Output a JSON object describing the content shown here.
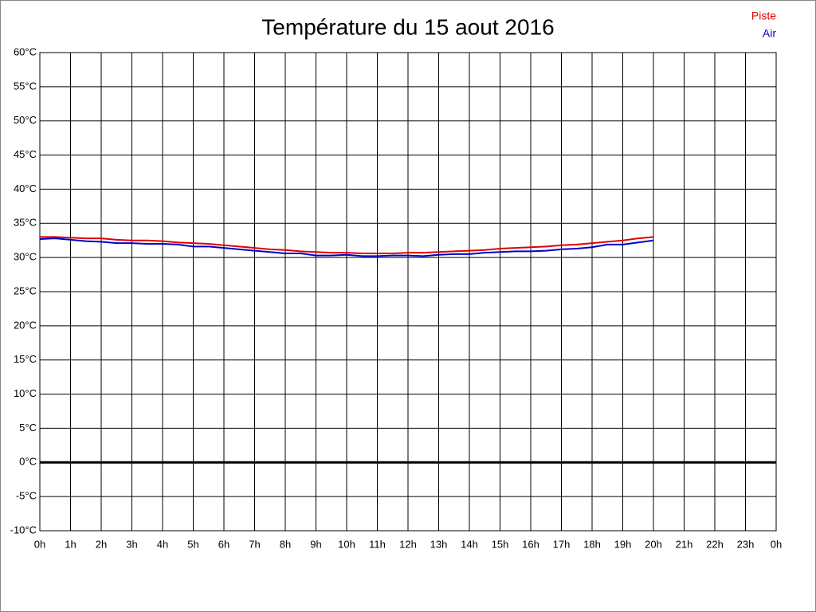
{
  "chart_data": {
    "type": "line",
    "title": "Température du 15 aout 2016",
    "x": [
      0,
      0.5,
      1,
      1.5,
      2,
      2.5,
      3,
      3.5,
      4,
      4.5,
      5,
      5.5,
      6,
      6.5,
      7,
      7.5,
      8,
      8.5,
      9,
      9.5,
      10,
      10.5,
      11,
      11.5,
      12,
      12.5,
      13,
      13.5,
      14,
      14.5,
      15,
      15.5,
      16,
      16.5,
      17,
      17.5,
      18,
      18.5,
      19,
      19.5,
      20
    ],
    "series": [
      {
        "name": "Piste",
        "color": "#e00000",
        "values": [
          33.0,
          33.0,
          32.9,
          32.8,
          32.8,
          32.6,
          32.5,
          32.5,
          32.4,
          32.2,
          32.1,
          32.0,
          31.8,
          31.6,
          31.4,
          31.2,
          31.1,
          30.9,
          30.8,
          30.7,
          30.7,
          30.6,
          30.6,
          30.6,
          30.7,
          30.7,
          30.8,
          30.9,
          31.0,
          31.1,
          31.3,
          31.4,
          31.5,
          31.6,
          31.8,
          31.9,
          32.1,
          32.3,
          32.5,
          32.8,
          33.0
        ]
      },
      {
        "name": "Air",
        "color": "#0000cc",
        "values": [
          32.7,
          32.8,
          32.6,
          32.4,
          32.3,
          32.1,
          32.1,
          32.0,
          32.0,
          31.9,
          31.6,
          31.6,
          31.4,
          31.2,
          31.0,
          30.8,
          30.6,
          30.6,
          30.3,
          30.3,
          30.4,
          30.2,
          30.2,
          30.3,
          30.3,
          30.2,
          30.4,
          30.5,
          30.5,
          30.7,
          30.8,
          30.9,
          30.9,
          31.0,
          31.2,
          31.3,
          31.5,
          31.9,
          31.9,
          32.2,
          32.5
        ]
      }
    ],
    "xlim": [
      0,
      24
    ],
    "xticks": [
      {
        "value": 0,
        "label": "0h"
      },
      {
        "value": 1,
        "label": "1h"
      },
      {
        "value": 2,
        "label": "2h"
      },
      {
        "value": 3,
        "label": "3h"
      },
      {
        "value": 4,
        "label": "4h"
      },
      {
        "value": 5,
        "label": "5h"
      },
      {
        "value": 6,
        "label": "6h"
      },
      {
        "value": 7,
        "label": "7h"
      },
      {
        "value": 8,
        "label": "8h"
      },
      {
        "value": 9,
        "label": "9h"
      },
      {
        "value": 10,
        "label": "10h"
      },
      {
        "value": 11,
        "label": "11h"
      },
      {
        "value": 12,
        "label": "12h"
      },
      {
        "value": 13,
        "label": "13h"
      },
      {
        "value": 14,
        "label": "14h"
      },
      {
        "value": 15,
        "label": "15h"
      },
      {
        "value": 16,
        "label": "16h"
      },
      {
        "value": 17,
        "label": "17h"
      },
      {
        "value": 18,
        "label": "18h"
      },
      {
        "value": 19,
        "label": "19h"
      },
      {
        "value": 20,
        "label": "20h"
      },
      {
        "value": 21,
        "label": "21h"
      },
      {
        "value": 22,
        "label": "22h"
      },
      {
        "value": 23,
        "label": "23h"
      },
      {
        "value": 24,
        "label": "0h"
      }
    ],
    "ylim": [
      -10,
      60
    ],
    "yticks": [
      {
        "value": -10,
        "label": "-10°C"
      },
      {
        "value": -5,
        "label": "-5°C"
      },
      {
        "value": 0,
        "label": "0°C"
      },
      {
        "value": 5,
        "label": "5°C"
      },
      {
        "value": 10,
        "label": "10°C"
      },
      {
        "value": 15,
        "label": "15°C"
      },
      {
        "value": 20,
        "label": "20°C"
      },
      {
        "value": 25,
        "label": "25°C"
      },
      {
        "value": 30,
        "label": "30°C"
      },
      {
        "value": 35,
        "label": "35°C"
      },
      {
        "value": 40,
        "label": "40°C"
      },
      {
        "value": 45,
        "label": "45°C"
      },
      {
        "value": 50,
        "label": "50°C"
      },
      {
        "value": 55,
        "label": "55°C"
      },
      {
        "value": 60,
        "label": "60°C"
      }
    ],
    "grid": true,
    "legend": "top-right"
  }
}
